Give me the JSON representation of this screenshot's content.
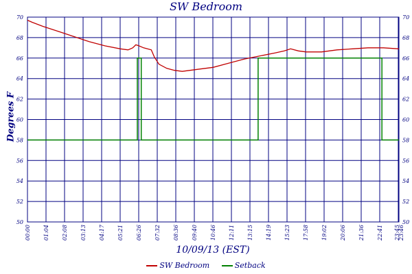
{
  "chart_data": {
    "type": "line",
    "title": "SW Bedroom",
    "xlabel": "10/09/13 (EST)",
    "ylabel": "Degrees F",
    "ylim": [
      50,
      70
    ],
    "y_ticks": [
      "50",
      "52",
      "54",
      "56",
      "58",
      "60",
      "62",
      "64",
      "66",
      "68",
      "70"
    ],
    "x_tick_labels": [
      "00:00",
      "01:04",
      "02:08",
      "03:13",
      "04:17",
      "05:21",
      "06:26",
      "07:32",
      "08:36",
      "09:40",
      "10:46",
      "12:11",
      "13:15",
      "14:19",
      "15:23",
      "17:58",
      "19:02",
      "20:06",
      "21:36",
      "22:41",
      "23:45",
      "23:46"
    ],
    "grid": true,
    "legend_position": "bottom",
    "series": [
      {
        "name": "SW Bedroom",
        "color": "#c00000",
        "points": [
          [
            0,
            69.7
          ],
          [
            0.3,
            69.5
          ],
          [
            1,
            69.1
          ],
          [
            2,
            68.6
          ],
          [
            3,
            68.1
          ],
          [
            4,
            67.6
          ],
          [
            5,
            67.2
          ],
          [
            6,
            66.9
          ],
          [
            6.5,
            66.8
          ],
          [
            6.8,
            67.0
          ],
          [
            7.0,
            67.3
          ],
          [
            7.2,
            67.2
          ],
          [
            7.5,
            67.0
          ],
          [
            8.0,
            66.8
          ],
          [
            8.2,
            66.1
          ],
          [
            8.5,
            65.4
          ],
          [
            9.0,
            65.0
          ],
          [
            9.5,
            64.8
          ],
          [
            10.0,
            64.7
          ],
          [
            11.0,
            64.9
          ],
          [
            12.0,
            65.1
          ],
          [
            13.0,
            65.5
          ],
          [
            14.0,
            65.9
          ],
          [
            15.0,
            66.2
          ],
          [
            16.0,
            66.5
          ],
          [
            16.6,
            66.7
          ],
          [
            17.0,
            66.9
          ],
          [
            17.5,
            66.7
          ],
          [
            18.0,
            66.6
          ],
          [
            19.0,
            66.6
          ],
          [
            20.0,
            66.8
          ],
          [
            21.0,
            66.9
          ],
          [
            22.0,
            67.0
          ],
          [
            23.0,
            67.0
          ],
          [
            24.0,
            66.9
          ]
        ]
      },
      {
        "name": "Setback",
        "color": "#008000",
        "points": [
          [
            0,
            58
          ],
          [
            7.1,
            58
          ],
          [
            7.1,
            66
          ],
          [
            7.35,
            66
          ],
          [
            7.35,
            58
          ],
          [
            14.9,
            58
          ],
          [
            14.9,
            66
          ],
          [
            22.9,
            66
          ],
          [
            22.9,
            58
          ],
          [
            24.0,
            58
          ]
        ]
      }
    ]
  },
  "legend": {
    "items": [
      {
        "label": "SW Bedroom",
        "color": "#c00000"
      },
      {
        "label": "Setback",
        "color": "#008000"
      }
    ]
  }
}
